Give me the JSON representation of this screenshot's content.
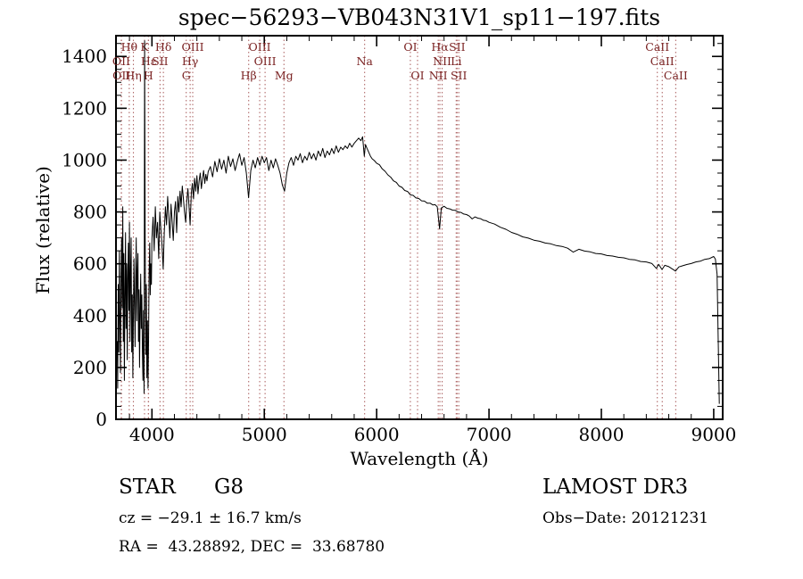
{
  "page": {
    "background": "#ffffff"
  },
  "annotations": {
    "object_class": "STAR",
    "subclass": "G8",
    "survey": "LAMOST DR3",
    "cz": "cz = −29.1 ± 16.7 km/s",
    "obs_date": "Obs−Date: 20121231",
    "ra_dec": "RA =  43.28892, DEC =  33.68780"
  },
  "chart_data": {
    "type": "line",
    "title": "spec−56293−VB043N31V1_sp11−197.fits",
    "xlabel": "Wavelength (Å)",
    "ylabel": "Flux (relative)",
    "xlim": [
      3680,
      9080
    ],
    "ylim": [
      0,
      1480
    ],
    "x_major_ticks": [
      4000,
      5000,
      6000,
      7000,
      8000,
      9000
    ],
    "x_minor_step": 200,
    "y_major_ticks": [
      0,
      200,
      400,
      600,
      800,
      1000,
      1200,
      1400
    ],
    "y_minor_step": 50,
    "grid": false,
    "legend": "none",
    "colors": {
      "spectrum": "#000000",
      "frame": "#000000",
      "marker_line": "#b06a6a",
      "marker_label": "#7a2222"
    },
    "spectral_lines": [
      {
        "label": "Hθ",
        "wavelength": 3798,
        "row": 0
      },
      {
        "label": "K",
        "wavelength": 3934,
        "row": 0
      },
      {
        "label": "Hδ",
        "wavelength": 4102,
        "row": 0
      },
      {
        "label": "OII",
        "wavelength": 3727,
        "row": 1
      },
      {
        "label": "Hε",
        "wavelength": 3970,
        "row": 1
      },
      {
        "label": "SII",
        "wavelength": 4072,
        "row": 1
      },
      {
        "label": "OII",
        "wavelength": 3729,
        "row": 2
      },
      {
        "label": "Hη",
        "wavelength": 3835,
        "row": 2
      },
      {
        "label": "H",
        "wavelength": 3968,
        "row": 2
      },
      {
        "label": "OIII",
        "wavelength": 4363,
        "row": 0
      },
      {
        "label": "Hγ",
        "wavelength": 4340,
        "row": 1
      },
      {
        "label": "G",
        "wavelength": 4305,
        "row": 2
      },
      {
        "label": "OIII",
        "wavelength": 4959,
        "row": 0
      },
      {
        "label": "OIII",
        "wavelength": 5007,
        "row": 1
      },
      {
        "label": "Hβ",
        "wavelength": 4861,
        "row": 2
      },
      {
        "label": "Mg",
        "wavelength": 5175,
        "row": 2
      },
      {
        "label": "Na",
        "wavelength": 5893,
        "row": 1
      },
      {
        "label": "OI",
        "wavelength": 6300,
        "row": 0
      },
      {
        "label": "OI",
        "wavelength": 6364,
        "row": 2
      },
      {
        "label": "Hα",
        "wavelength": 6563,
        "row": 0
      },
      {
        "label": "SII",
        "wavelength": 6716,
        "row": 0
      },
      {
        "label": "NII",
        "wavelength": 6583,
        "row": 1
      },
      {
        "label": "Li",
        "wavelength": 6708,
        "row": 1
      },
      {
        "label": "NII",
        "wavelength": 6548,
        "row": 2
      },
      {
        "label": "SII",
        "wavelength": 6731,
        "row": 2
      },
      {
        "label": "CaII",
        "wavelength": 8498,
        "row": 0
      },
      {
        "label": "CaII",
        "wavelength": 8542,
        "row": 1
      },
      {
        "label": "CaII",
        "wavelength": 8662,
        "row": 2
      }
    ],
    "series": [
      {
        "name": "flux",
        "points": [
          [
            3690,
            300
          ],
          [
            3695,
            120
          ],
          [
            3700,
            520
          ],
          [
            3705,
            260
          ],
          [
            3710,
            650
          ],
          [
            3715,
            380
          ],
          [
            3720,
            180
          ],
          [
            3725,
            560
          ],
          [
            3730,
            700
          ],
          [
            3735,
            430
          ],
          [
            3740,
            820
          ],
          [
            3745,
            300
          ],
          [
            3750,
            640
          ],
          [
            3755,
            150
          ],
          [
            3760,
            500
          ],
          [
            3765,
            720
          ],
          [
            3770,
            350
          ],
          [
            3775,
            600
          ],
          [
            3780,
            230
          ],
          [
            3785,
            540
          ],
          [
            3790,
            680
          ],
          [
            3795,
            420
          ],
          [
            3800,
            760
          ],
          [
            3805,
            300
          ],
          [
            3810,
            580
          ],
          [
            3815,
            700
          ],
          [
            3820,
            260
          ],
          [
            3825,
            480
          ],
          [
            3830,
            160
          ],
          [
            3835,
            390
          ],
          [
            3840,
            620
          ],
          [
            3845,
            450
          ],
          [
            3850,
            280
          ],
          [
            3855,
            540
          ],
          [
            3860,
            700
          ],
          [
            3865,
            380
          ],
          [
            3870,
            560
          ],
          [
            3875,
            640
          ],
          [
            3880,
            300
          ],
          [
            3885,
            500
          ],
          [
            3890,
            200
          ],
          [
            3895,
            430
          ],
          [
            3900,
            560
          ],
          [
            3905,
            350
          ],
          [
            3910,
            480
          ],
          [
            3915,
            260
          ],
          [
            3920,
            150
          ],
          [
            3925,
            420
          ],
          [
            3930,
            100
          ],
          [
            3935,
            1460
          ],
          [
            3940,
            700
          ],
          [
            3945,
            250
          ],
          [
            3950,
            520
          ],
          [
            3955,
            160
          ],
          [
            3960,
            380
          ],
          [
            3965,
            120
          ],
          [
            3970,
            300
          ],
          [
            3975,
            560
          ],
          [
            3980,
            680
          ],
          [
            3985,
            480
          ],
          [
            3990,
            600
          ],
          [
            3995,
            520
          ],
          [
            4000,
            700
          ],
          [
            4010,
            780
          ],
          [
            4020,
            650
          ],
          [
            4030,
            820
          ],
          [
            4040,
            700
          ],
          [
            4050,
            760
          ],
          [
            4060,
            620
          ],
          [
            4070,
            800
          ],
          [
            4080,
            730
          ],
          [
            4090,
            670
          ],
          [
            4100,
            580
          ],
          [
            4110,
            720
          ],
          [
            4120,
            820
          ],
          [
            4130,
            750
          ],
          [
            4140,
            860
          ],
          [
            4150,
            780
          ],
          [
            4160,
            700
          ],
          [
            4170,
            830
          ],
          [
            4180,
            760
          ],
          [
            4190,
            690
          ],
          [
            4200,
            800
          ],
          [
            4210,
            840
          ],
          [
            4220,
            720
          ],
          [
            4230,
            860
          ],
          [
            4240,
            800
          ],
          [
            4250,
            880
          ],
          [
            4260,
            820
          ],
          [
            4270,
            900
          ],
          [
            4280,
            850
          ],
          [
            4290,
            800
          ],
          [
            4300,
            760
          ],
          [
            4310,
            840
          ],
          [
            4320,
            890
          ],
          [
            4330,
            820
          ],
          [
            4340,
            750
          ],
          [
            4350,
            870
          ],
          [
            4360,
            910
          ],
          [
            4370,
            850
          ],
          [
            4380,
            930
          ],
          [
            4390,
            880
          ],
          [
            4400,
            940
          ],
          [
            4410,
            870
          ],
          [
            4420,
            920
          ],
          [
            4430,
            950
          ],
          [
            4440,
            890
          ],
          [
            4450,
            930
          ],
          [
            4460,
            960
          ],
          [
            4470,
            910
          ],
          [
            4480,
            945
          ],
          [
            4490,
            920
          ],
          [
            4500,
            955
          ],
          [
            4520,
            975
          ],
          [
            4540,
            935
          ],
          [
            4560,
            995
          ],
          [
            4580,
            955
          ],
          [
            4600,
            1005
          ],
          [
            4620,
            965
          ],
          [
            4640,
            1000
          ],
          [
            4660,
            950
          ],
          [
            4680,
            1015
          ],
          [
            4700,
            975
          ],
          [
            4720,
            1005
          ],
          [
            4740,
            960
          ],
          [
            4760,
            995
          ],
          [
            4780,
            1025
          ],
          [
            4800,
            980
          ],
          [
            4820,
            1010
          ],
          [
            4840,
            950
          ],
          [
            4860,
            855
          ],
          [
            4880,
            960
          ],
          [
            4900,
            1000
          ],
          [
            4920,
            970
          ],
          [
            4940,
            1010
          ],
          [
            4960,
            980
          ],
          [
            4980,
            1015
          ],
          [
            5000,
            990
          ],
          [
            5020,
            1010
          ],
          [
            5040,
            960
          ],
          [
            5060,
            1000
          ],
          [
            5080,
            970
          ],
          [
            5100,
            1005
          ],
          [
            5120,
            980
          ],
          [
            5140,
            950
          ],
          [
            5160,
            905
          ],
          [
            5180,
            880
          ],
          [
            5200,
            950
          ],
          [
            5220,
            990
          ],
          [
            5240,
            1010
          ],
          [
            5260,
            980
          ],
          [
            5280,
            1015
          ],
          [
            5300,
            1000
          ],
          [
            5320,
            1025
          ],
          [
            5340,
            990
          ],
          [
            5360,
            1015
          ],
          [
            5380,
            1000
          ],
          [
            5400,
            1030
          ],
          [
            5420,
            1005
          ],
          [
            5440,
            1025
          ],
          [
            5460,
            1000
          ],
          [
            5480,
            1035
          ],
          [
            5500,
            1015
          ],
          [
            5520,
            1045
          ],
          [
            5540,
            1010
          ],
          [
            5560,
            1035
          ],
          [
            5580,
            1020
          ],
          [
            5600,
            1045
          ],
          [
            5620,
            1025
          ],
          [
            5640,
            1055
          ],
          [
            5660,
            1030
          ],
          [
            5680,
            1050
          ],
          [
            5700,
            1040
          ],
          [
            5720,
            1055
          ],
          [
            5740,
            1045
          ],
          [
            5760,
            1065
          ],
          [
            5780,
            1050
          ],
          [
            5800,
            1065
          ],
          [
            5820,
            1075
          ],
          [
            5840,
            1085
          ],
          [
            5860,
            1075
          ],
          [
            5875,
            1090
          ],
          [
            5890,
            1015
          ],
          [
            5900,
            1060
          ],
          [
            5915,
            1045
          ],
          [
            5930,
            1030
          ],
          [
            5945,
            1015
          ],
          [
            5960,
            1005
          ],
          [
            5980,
            998
          ],
          [
            6000,
            988
          ],
          [
            6025,
            982
          ],
          [
            6050,
            966
          ],
          [
            6075,
            957
          ],
          [
            6100,
            943
          ],
          [
            6125,
            934
          ],
          [
            6150,
            920
          ],
          [
            6175,
            914
          ],
          [
            6200,
            900
          ],
          [
            6225,
            895
          ],
          [
            6250,
            883
          ],
          [
            6275,
            879
          ],
          [
            6300,
            866
          ],
          [
            6325,
            864
          ],
          [
            6350,
            854
          ],
          [
            6375,
            852
          ],
          [
            6400,
            843
          ],
          [
            6425,
            842
          ],
          [
            6450,
            834
          ],
          [
            6475,
            834
          ],
          [
            6500,
            827
          ],
          [
            6520,
            828
          ],
          [
            6540,
            820
          ],
          [
            6560,
            735
          ],
          [
            6575,
            815
          ],
          [
            6600,
            822
          ],
          [
            6625,
            814
          ],
          [
            6650,
            812
          ],
          [
            6675,
            807
          ],
          [
            6700,
            806
          ],
          [
            6725,
            800
          ],
          [
            6750,
            798
          ],
          [
            6775,
            792
          ],
          [
            6800,
            790
          ],
          [
            6825,
            784
          ],
          [
            6850,
            773
          ],
          [
            6875,
            781
          ],
          [
            6900,
            776
          ],
          [
            6925,
            774
          ],
          [
            6950,
            768
          ],
          [
            6975,
            766
          ],
          [
            7000,
            760
          ],
          [
            7050,
            753
          ],
          [
            7100,
            741
          ],
          [
            7150,
            733
          ],
          [
            7200,
            721
          ],
          [
            7250,
            714
          ],
          [
            7300,
            704
          ],
          [
            7350,
            699
          ],
          [
            7400,
            691
          ],
          [
            7450,
            687
          ],
          [
            7500,
            680
          ],
          [
            7550,
            677
          ],
          [
            7600,
            670
          ],
          [
            7650,
            667
          ],
          [
            7700,
            660
          ],
          [
            7750,
            645
          ],
          [
            7800,
            656
          ],
          [
            7850,
            649
          ],
          [
            7900,
            646
          ],
          [
            7950,
            640
          ],
          [
            8000,
            638
          ],
          [
            8050,
            632
          ],
          [
            8100,
            630
          ],
          [
            8150,
            625
          ],
          [
            8200,
            623
          ],
          [
            8250,
            617
          ],
          [
            8300,
            615
          ],
          [
            8350,
            609
          ],
          [
            8400,
            607
          ],
          [
            8450,
            601
          ],
          [
            8490,
            582
          ],
          [
            8510,
            598
          ],
          [
            8540,
            578
          ],
          [
            8565,
            594
          ],
          [
            8600,
            589
          ],
          [
            8660,
            572
          ],
          [
            8690,
            588
          ],
          [
            8720,
            592
          ],
          [
            8760,
            597
          ],
          [
            8800,
            601
          ],
          [
            8840,
            607
          ],
          [
            8880,
            610
          ],
          [
            8920,
            617
          ],
          [
            8960,
            620
          ],
          [
            9000,
            628
          ],
          [
            9015,
            618
          ],
          [
            9030,
            560
          ],
          [
            9040,
            300
          ],
          [
            9050,
            60
          ]
        ]
      }
    ]
  }
}
